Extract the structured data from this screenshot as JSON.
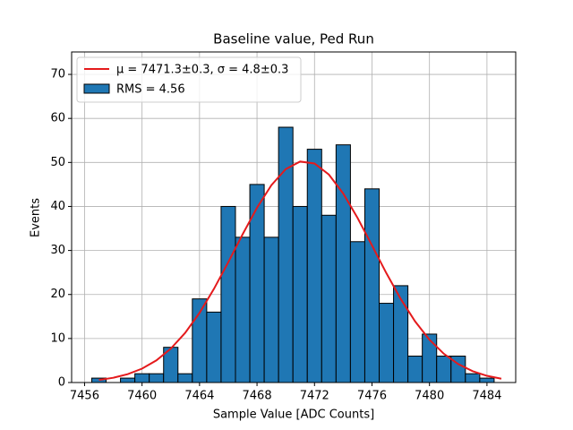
{
  "chart_data": {
    "type": "histogram",
    "title": "Baseline value, Ped Run",
    "x_label": "Sample Value [ADC Counts]",
    "y_label": "Events",
    "bins": [
      7456.5,
      7457.5,
      7458.5,
      7459.5,
      7460.5,
      7461.5,
      7462.5,
      7463.5,
      7464.5,
      7465.5,
      7466.5,
      7467.5,
      7468.5,
      7469.5,
      7470.5,
      7471.5,
      7472.5,
      7473.5,
      7474.5,
      7475.5,
      7476.5,
      7477.5,
      7478.5,
      7479.5,
      7480.5,
      7481.5,
      7482.5,
      7483.5,
      7484.5
    ],
    "counts": [
      1,
      0,
      1,
      2,
      2,
      8,
      2,
      19,
      16,
      40,
      33,
      45,
      33,
      58,
      40,
      53,
      38,
      54,
      32,
      44,
      18,
      22,
      6,
      11,
      6,
      6,
      2,
      1
    ],
    "hist_name": "RMS = 4.56",
    "hist_color": "#1f77b4",
    "fit": {
      "name": "μ = 7471.3±0.3, σ = 4.8±0.3",
      "color": "#e41a1c",
      "x": [
        7457,
        7458,
        7459,
        7460,
        7461,
        7462,
        7463,
        7464,
        7465,
        7466,
        7467,
        7468,
        7469,
        7470,
        7471,
        7472,
        7473,
        7474,
        7475,
        7476,
        7477,
        7478,
        7479,
        7480,
        7481,
        7482,
        7483,
        7484,
        7485
      ],
      "values": [
        0.59,
        1.08,
        1.89,
        3.15,
        5.03,
        7.7,
        11.28,
        15.82,
        21.26,
        27.34,
        33.68,
        39.71,
        44.84,
        48.49,
        50.2,
        49.77,
        47.24,
        42.94,
        37.37,
        31.15,
        24.85,
        18.99,
        13.89,
        9.73,
        6.53,
        4.19,
        2.58,
        1.52,
        0.86
      ]
    },
    "xlim": [
      7455.1,
      7486.0
    ],
    "ylim": [
      0,
      75.1
    ],
    "xticks": [
      7456,
      7460,
      7464,
      7468,
      7472,
      7476,
      7480,
      7484
    ],
    "yticks": [
      0,
      10,
      20,
      30,
      40,
      50,
      60,
      70
    ],
    "grid": true,
    "legend": "upper left"
  }
}
